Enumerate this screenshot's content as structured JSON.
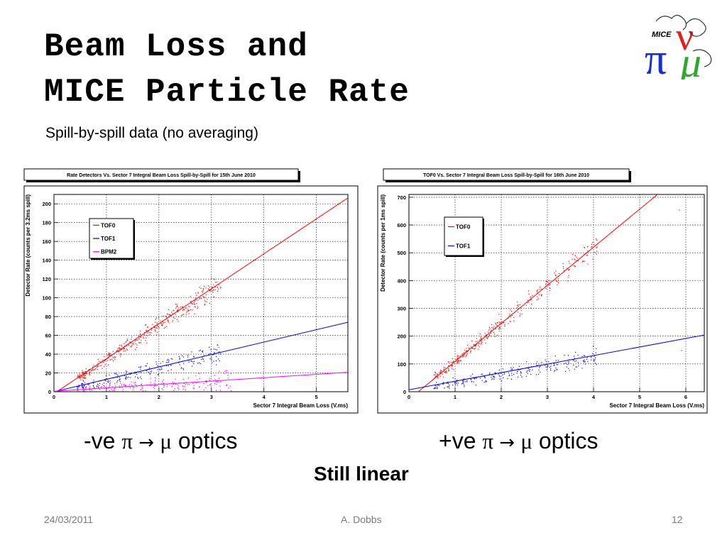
{
  "slide": {
    "title_line1": "Beam Loss and",
    "title_line2": "MICE Particle Rate",
    "subtitle": "Spill-by-spill data (no averaging)",
    "caption_left": {
      "prefix": "-ve ",
      "pi": "π",
      "arrow": " → ",
      "mu": "μ",
      "suffix": " optics"
    },
    "caption_right": {
      "prefix": "+ve ",
      "pi": "π",
      "arrow": " → ",
      "mu": "μ",
      "suffix": " optics"
    },
    "emphasis": "Still linear",
    "footer_date": "24/03/2011",
    "footer_author": "A. Dobbs",
    "footer_page": "12",
    "logo": {
      "text": "MICE",
      "symbols": [
        "π",
        "ν",
        "μ"
      ]
    }
  },
  "colors": {
    "tof0": "#ff0000",
    "tof1": "#0000ff",
    "bpm2": "#ff00ff",
    "logo_red": "#e0201b",
    "logo_blue": "#1a2fd0",
    "logo_green": "#2ea82e"
  },
  "chart_data": [
    {
      "type": "scatter",
      "title": "Rate Detectors Vs. Sector 7 Integral Beam Loss Spill-by-Spill for 15th June 2010",
      "xlabel": "Sector 7 Integral Beam Loss (V.ms)",
      "ylabel": "Detector Rate (counts per 3.2ms spill)",
      "xlim": [
        0,
        5.6
      ],
      "ylim": [
        0,
        210
      ],
      "xticks": [
        0,
        1,
        2,
        3,
        4,
        5
      ],
      "yticks": [
        0,
        20,
        40,
        60,
        80,
        100,
        120,
        140,
        160,
        180,
        200
      ],
      "grid": true,
      "legend_position": "top-left",
      "series": [
        {
          "name": "TOF0",
          "color": "#ff0000",
          "fit": {
            "slope": 37.2,
            "intercept": -2
          },
          "points": [
            [
              0.5,
              16
            ],
            [
              0.55,
              18
            ],
            [
              0.6,
              20
            ],
            [
              0.65,
              22
            ],
            [
              0.8,
              27
            ],
            [
              0.9,
              30
            ],
            [
              1.0,
              35
            ],
            [
              1.1,
              38
            ],
            [
              1.2,
              42
            ],
            [
              1.3,
              46
            ],
            [
              1.4,
              50
            ],
            [
              1.5,
              53
            ],
            [
              1.6,
              57
            ],
            [
              1.7,
              60
            ],
            [
              1.8,
              64
            ],
            [
              1.9,
              68
            ],
            [
              2.0,
              72
            ],
            [
              2.1,
              76
            ],
            [
              2.2,
              80
            ],
            [
              2.3,
              84
            ],
            [
              2.4,
              87
            ],
            [
              2.5,
              90
            ],
            [
              2.6,
              94
            ],
            [
              2.7,
              98
            ],
            [
              2.8,
              102
            ],
            [
              2.9,
              106
            ],
            [
              3.0,
              110
            ],
            [
              3.1,
              112
            ]
          ]
        },
        {
          "name": "TOF1",
          "color": "#0000ff",
          "fit": {
            "slope": 13.2,
            "intercept": 0
          },
          "points": [
            [
              0.5,
              6
            ],
            [
              0.6,
              8
            ],
            [
              0.8,
              10
            ],
            [
              1.0,
              13
            ],
            [
              1.2,
              16
            ],
            [
              1.4,
              18
            ],
            [
              1.6,
              21
            ],
            [
              1.8,
              24
            ],
            [
              2.0,
              26
            ],
            [
              2.2,
              29
            ],
            [
              2.4,
              32
            ],
            [
              2.6,
              34
            ],
            [
              2.8,
              37
            ],
            [
              3.0,
              40
            ],
            [
              3.1,
              41
            ]
          ]
        },
        {
          "name": "BPM2",
          "color": "#ff00ff",
          "fit": {
            "slope": 3.6,
            "intercept": 0.5
          },
          "points": [
            [
              0.5,
              2
            ],
            [
              0.7,
              3
            ],
            [
              0.9,
              4
            ],
            [
              1.1,
              4.5
            ],
            [
              1.3,
              5
            ],
            [
              1.5,
              6
            ],
            [
              1.7,
              6.5
            ],
            [
              1.9,
              7
            ],
            [
              2.1,
              8
            ],
            [
              2.3,
              8.5
            ],
            [
              2.5,
              9
            ],
            [
              2.7,
              10
            ],
            [
              2.9,
              10.5
            ],
            [
              3.1,
              11
            ],
            [
              3.3,
              12
            ]
          ]
        }
      ]
    },
    {
      "type": "scatter",
      "title": "TOF0 Vs. Sector 7 Integral Beam Loss Spill-by-Spill for 16th June 2010",
      "xlabel": "Sector 7 Integral Beam Loss (V.ms)",
      "ylabel": "Detector Rate (counts per 1ms spill)",
      "xlim": [
        0,
        6.4
      ],
      "ylim": [
        0,
        710
      ],
      "xticks": [
        0,
        1,
        2,
        3,
        4,
        5,
        6
      ],
      "yticks": [
        0,
        100,
        200,
        300,
        400,
        500,
        600,
        700
      ],
      "grid": true,
      "legend_position": "top-left",
      "series": [
        {
          "name": "TOF0",
          "color": "#ff0000",
          "fit": {
            "slope": 137,
            "intercept": -28
          },
          "points": [
            [
              0.6,
              60
            ],
            [
              0.7,
              68
            ],
            [
              0.8,
              80
            ],
            [
              0.9,
              95
            ],
            [
              1.0,
              110
            ],
            [
              1.1,
              125
            ],
            [
              1.2,
              135
            ],
            [
              1.3,
              150
            ],
            [
              1.4,
              165
            ],
            [
              1.5,
              180
            ],
            [
              1.6,
              195
            ],
            [
              1.7,
              205
            ],
            [
              1.8,
              220
            ],
            [
              1.9,
              235
            ],
            [
              2.0,
              250
            ],
            [
              2.2,
              275
            ],
            [
              2.4,
              300
            ],
            [
              2.6,
              330
            ],
            [
              2.8,
              355
            ],
            [
              3.0,
              385
            ],
            [
              3.2,
              410
            ],
            [
              3.4,
              440
            ],
            [
              3.6,
              470
            ],
            [
              3.8,
              495
            ],
            [
              4.0,
              520
            ],
            [
              5.85,
              655
            ]
          ]
        },
        {
          "name": "TOF1",
          "color": "#0000ff",
          "fit": {
            "slope": 30.8,
            "intercept": 7
          },
          "points": [
            [
              0.6,
              22
            ],
            [
              0.8,
              28
            ],
            [
              1.0,
              33
            ],
            [
              1.2,
              38
            ],
            [
              1.4,
              45
            ],
            [
              1.6,
              50
            ],
            [
              1.8,
              57
            ],
            [
              2.0,
              62
            ],
            [
              2.2,
              68
            ],
            [
              2.4,
              75
            ],
            [
              2.6,
              80
            ],
            [
              2.8,
              88
            ],
            [
              3.0,
              94
            ],
            [
              3.2,
              100
            ],
            [
              3.4,
              107
            ],
            [
              3.6,
              112
            ],
            [
              3.8,
              118
            ],
            [
              4.0,
              125
            ],
            [
              5.9,
              150
            ]
          ]
        }
      ]
    }
  ]
}
